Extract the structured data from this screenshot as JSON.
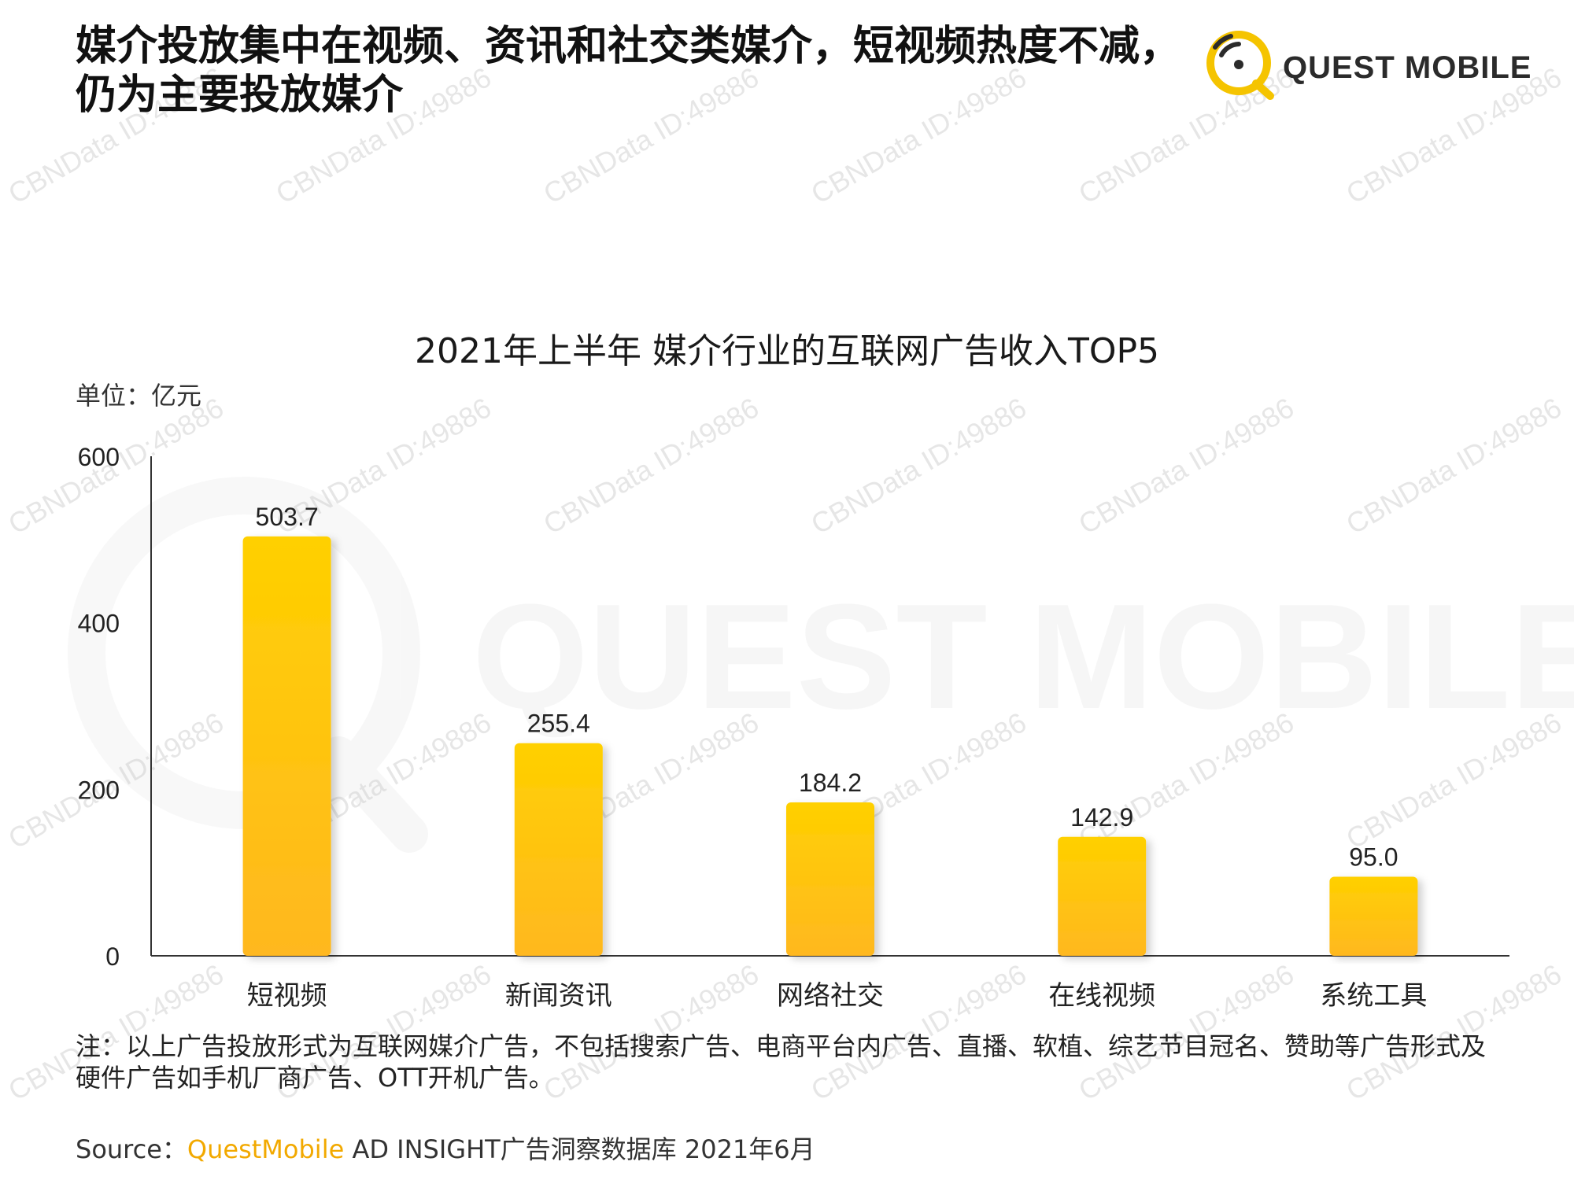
{
  "headline": "媒介投放集中在视频、资讯和社交类媒介，短视频热度不减，仍为主要投放媒介",
  "logo": {
    "text": "QUEST MOBILE"
  },
  "unit_label": "单位：亿元",
  "note": "注：以上广告投放形式为互联网媒介广告，不包括搜索广告、电商平台内广告、直播、软植、综艺节目冠名、赞助等广告形式及硬件广告如手机厂商广告、OTT开机广告。",
  "source": {
    "prefix": "Source：",
    "brand": "QuestMobile",
    "rest": " AD INSIGHT广告洞察数据库 2021年6月"
  },
  "watermark": {
    "text": "CBNData ID:49886",
    "background_text": "QUEST MOBILE"
  },
  "colors": {
    "bar_top": "#ffd000",
    "bar_bottom": "#ffb820",
    "accent": "#f2a900"
  },
  "chart_data": {
    "type": "bar",
    "title": "2021年上半年 媒介行业的互联网广告收入TOP5",
    "categories": [
      "短视频",
      "新闻资讯",
      "网络社交",
      "在线视频",
      "系统工具"
    ],
    "values": [
      503.7,
      255.4,
      184.2,
      142.9,
      95.0
    ],
    "value_labels": [
      "503.7",
      "255.4",
      "184.2",
      "142.9",
      "95.0"
    ],
    "yticks": [
      0,
      200,
      400,
      600
    ],
    "ylim": [
      0,
      600
    ],
    "xlabel": "",
    "ylabel": "",
    "grid": false
  }
}
